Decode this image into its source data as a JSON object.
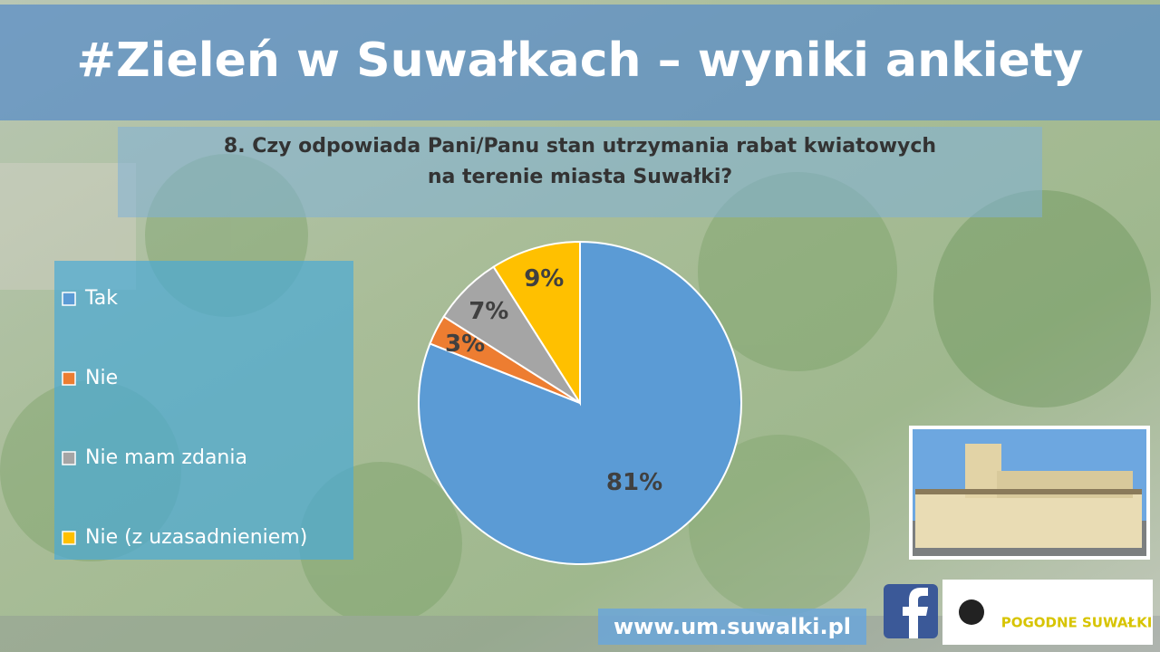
{
  "chart_data": {
    "type": "pie",
    "title": "#Zieleń w Suwałkach – wyniki ankiety",
    "subtitle": "8. Czy odpowiada Pani/Panu stan utrzymania rabat kwiatowych na terenie miasta Suwałki?",
    "categories": [
      "Tak",
      "Nie",
      "Nie mam zdania",
      "Nie (z uzasadnieniem)"
    ],
    "values": [
      81,
      3,
      7,
      9
    ],
    "value_labels": [
      "81%",
      "3%",
      "7%",
      "9%"
    ],
    "colors": [
      "#5b9bd5",
      "#ed7d31",
      "#a5a5a5",
      "#ffc000"
    ],
    "legend": "left"
  },
  "footer": {
    "url": "www.um.suwalki.pl",
    "logo": "POGODNE SUWAŁKI"
  }
}
